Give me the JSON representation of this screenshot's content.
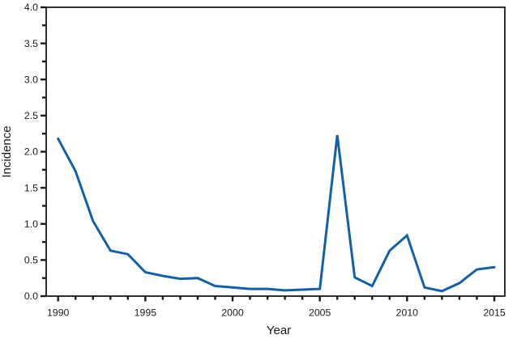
{
  "chart_data": {
    "type": "line",
    "title": "",
    "xlabel": "Year",
    "ylabel": "Incidence",
    "x": [
      1990,
      1991,
      1992,
      1993,
      1994,
      1995,
      1996,
      1997,
      1998,
      1999,
      2000,
      2001,
      2002,
      2003,
      2004,
      2005,
      2006,
      2007,
      2008,
      2009,
      2010,
      2011,
      2012,
      2013,
      2014,
      2015
    ],
    "series": [
      {
        "name": "Incidence",
        "color": "#1261A8",
        "values": [
          2.18,
          1.73,
          1.04,
          0.63,
          0.58,
          0.33,
          0.28,
          0.24,
          0.25,
          0.14,
          0.12,
          0.1,
          0.1,
          0.08,
          0.09,
          0.1,
          2.23,
          0.26,
          0.14,
          0.63,
          0.84,
          0.12,
          0.07,
          0.18,
          0.37,
          0.4
        ]
      }
    ],
    "ylim": [
      0,
      4
    ],
    "ytick_labels": [
      "0.0",
      "0.5",
      "1.0",
      "1.5",
      "2.0",
      "2.5",
      "3.0",
      "3.5",
      "4.0"
    ],
    "ytick_minor_step": 0.25,
    "xtick_labels": [
      "1990",
      "1995",
      "2000",
      "2005",
      "2010",
      "2015"
    ],
    "xtick_minor_step": 1,
    "grid": "off",
    "legend": "none",
    "axis_color": "#1a1a1a",
    "text_color": "#1a1a1a"
  }
}
